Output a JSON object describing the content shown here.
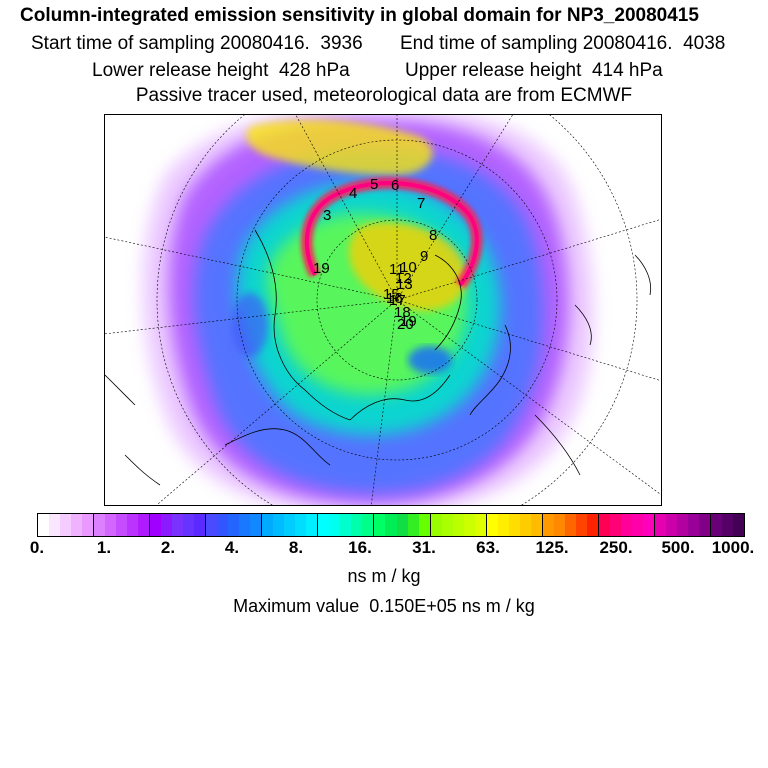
{
  "header": {
    "title": "Column-integrated emission sensitivity in global domain for NP3_20080415",
    "start_sampling": "Start time of sampling 20080416.  3936",
    "end_sampling": "End time of sampling 20080416.  4038",
    "lower_release": "Lower release height  428 hPa",
    "upper_release": "Upper release height  414 hPa",
    "tracer_note": "Passive tracer used, meteorological data are from ECMWF"
  },
  "map": {
    "trajectory_labels": [
      "3",
      "4",
      "5",
      "6",
      "7",
      "8",
      "9",
      "10",
      "11",
      "12",
      "13",
      "15",
      "16",
      "17",
      "18",
      "19",
      "20"
    ]
  },
  "colorbar": {
    "tick_labels": [
      "0.",
      "1.",
      "2.",
      "4.",
      "8.",
      "16.",
      "31.",
      "63.",
      "125.",
      "250.",
      "500.",
      "1000."
    ],
    "unit": "ns m / kg",
    "colors": [
      "#ffffff",
      "#fbe6ff",
      "#f5ccff",
      "#efb2ff",
      "#e999ff",
      "#dd80ff",
      "#d266ff",
      "#c64cff",
      "#bb33ff",
      "#b01aff",
      "#a000ff",
      "#8c1aff",
      "#7a33ff",
      "#6633ff",
      "#5a2aff",
      "#4a4aff",
      "#3355ff",
      "#2266ff",
      "#1a77ff",
      "#1188ff",
      "#00aaff",
      "#00bbff",
      "#00ccff",
      "#00ddff",
      "#00eeff",
      "#00ffff",
      "#00ffee",
      "#00ffcc",
      "#00ffaa",
      "#00ff88",
      "#00ff66",
      "#00ee55",
      "#11dd44",
      "#33ee22",
      "#66ff00",
      "#99ff00",
      "#aaff00",
      "#bbff00",
      "#ccff00",
      "#ddff00",
      "#ffff00",
      "#ffee00",
      "#ffdd00",
      "#ffcc00",
      "#ffbb00",
      "#ff9900",
      "#ff8800",
      "#ff6600",
      "#ff4400",
      "#ff2200",
      "#ff0055",
      "#ff0077",
      "#ff0099",
      "#ff00aa",
      "#ff00bb",
      "#e600b0",
      "#cc00aa",
      "#b300a0",
      "#990099",
      "#800088",
      "#6a0077",
      "#550066",
      "#440055"
    ]
  },
  "footer": {
    "max_value": "Maximum value  0.150E+05 ns m / kg"
  }
}
